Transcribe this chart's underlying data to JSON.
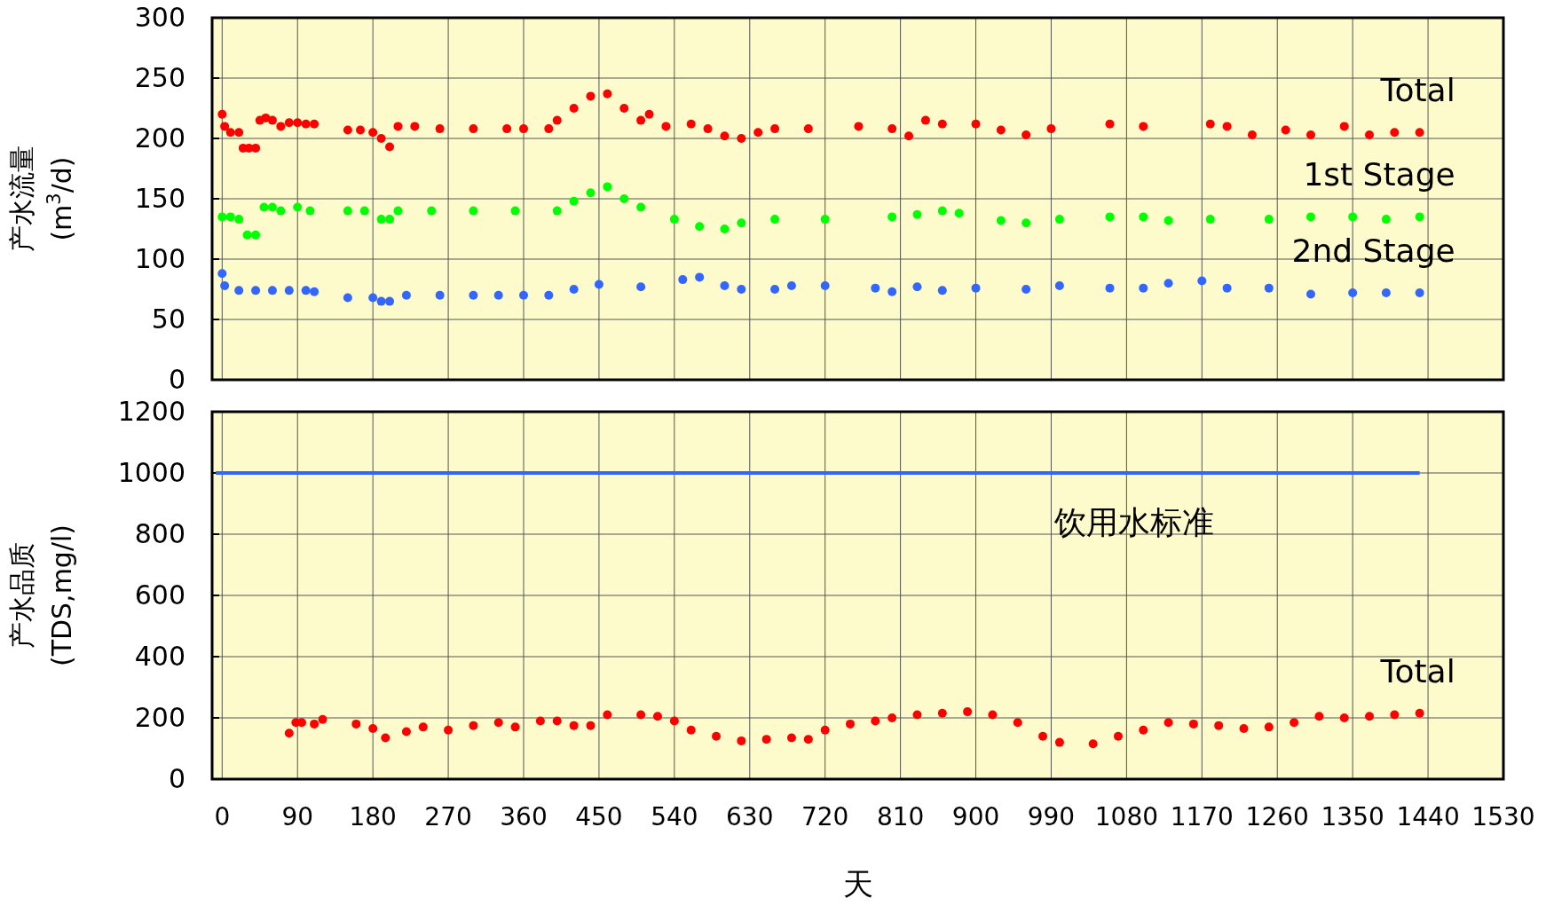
{
  "chart_data": [
    {
      "type": "scatter",
      "ylabel": "产水流量 (m$^{3}$/d)",
      "xlim": [
        -12,
        1530
      ],
      "xticks": [
        0,
        90,
        180,
        270,
        360,
        450,
        540,
        630,
        720,
        810,
        900,
        990,
        1080,
        1170,
        1260,
        1350,
        1440,
        1530
      ],
      "ylim": [
        0,
        300
      ],
      "yticks": [
        0,
        50,
        100,
        150,
        200,
        250,
        300
      ],
      "grid": true,
      "marker": "circle",
      "tick_labels": "y",
      "series": [
        {
          "name": "Total",
          "color": "#ff0000",
          "x": [
            0,
            3,
            10,
            20,
            25,
            32,
            40,
            45,
            52,
            60,
            70,
            80,
            90,
            100,
            110,
            150,
            165,
            180,
            190,
            200,
            210,
            230,
            260,
            300,
            340,
            360,
            390,
            400,
            420,
            440,
            460,
            480,
            500,
            510,
            530,
            560,
            580,
            600,
            620,
            640,
            660,
            700,
            760,
            800,
            820,
            840,
            860,
            900,
            930,
            960,
            990,
            1060,
            1100,
            1180,
            1200,
            1230,
            1270,
            1300,
            1340,
            1370,
            1400,
            1430
          ],
          "values": [
            220,
            210,
            205,
            205,
            192,
            192,
            192,
            215,
            217,
            215,
            210,
            213,
            213,
            212,
            212,
            207,
            207,
            205,
            200,
            193,
            210,
            210,
            208,
            208,
            208,
            208,
            208,
            215,
            225,
            235,
            237,
            225,
            215,
            220,
            210,
            212,
            208,
            202,
            200,
            205,
            208,
            208,
            210,
            208,
            202,
            215,
            212,
            212,
            207,
            203,
            208,
            212,
            210,
            212,
            210,
            203,
            207,
            203,
            210,
            203,
            205,
            205
          ]
        },
        {
          "name": "1st Stage",
          "color": "#00ff00",
          "x": [
            0,
            10,
            20,
            30,
            40,
            50,
            60,
            70,
            90,
            105,
            150,
            170,
            190,
            200,
            210,
            250,
            300,
            350,
            400,
            420,
            440,
            460,
            480,
            500,
            540,
            570,
            600,
            620,
            660,
            720,
            800,
            830,
            860,
            880,
            930,
            960,
            1000,
            1060,
            1100,
            1130,
            1180,
            1250,
            1300,
            1350,
            1390,
            1430
          ],
          "values": [
            135,
            135,
            133,
            120,
            120,
            143,
            143,
            140,
            143,
            140,
            140,
            140,
            133,
            133,
            140,
            140,
            140,
            140,
            140,
            148,
            155,
            160,
            150,
            143,
            133,
            127,
            125,
            130,
            133,
            133,
            135,
            137,
            140,
            138,
            132,
            130,
            133,
            135,
            135,
            132,
            133,
            133,
            135,
            135,
            133,
            135
          ]
        },
        {
          "name": "2nd Stage",
          "color": "#3366ff",
          "x": [
            0,
            3,
            20,
            40,
            60,
            80,
            100,
            110,
            150,
            180,
            190,
            200,
            220,
            260,
            300,
            330,
            360,
            390,
            420,
            450,
            500,
            550,
            570,
            600,
            620,
            660,
            680,
            720,
            780,
            800,
            830,
            860,
            900,
            960,
            1000,
            1060,
            1100,
            1130,
            1170,
            1200,
            1250,
            1300,
            1350,
            1390,
            1430
          ],
          "values": [
            88,
            78,
            74,
            74,
            74,
            74,
            74,
            73,
            68,
            68,
            65,
            65,
            70,
            70,
            70,
            70,
            70,
            70,
            75,
            79,
            77,
            83,
            85,
            78,
            75,
            75,
            78,
            78,
            76,
            73,
            77,
            74,
            76,
            75,
            78,
            76,
            76,
            80,
            82,
            76,
            76,
            71,
            72,
            72,
            72
          ]
        }
      ]
    },
    {
      "type": "scatter",
      "xlabel": "天",
      "ylabel": "产水品质 (TDS,mg/l)",
      "xlim": [
        -12,
        1530
      ],
      "xticks": [
        0,
        90,
        180,
        270,
        360,
        450,
        540,
        630,
        720,
        810,
        900,
        990,
        1080,
        1170,
        1260,
        1350,
        1440,
        1530
      ],
      "ylim": [
        0,
        1200
      ],
      "yticks": [
        0,
        200,
        400,
        600,
        800,
        1000,
        1200
      ],
      "grid": true,
      "marker": "circle",
      "ref_lines": [
        {
          "axis": "y",
          "value": 1000,
          "label": "饮用水标准",
          "color": "#3366ff"
        }
      ],
      "series": [
        {
          "name": "Total",
          "color": "#ff0000",
          "x": [
            80,
            88,
            95,
            110,
            120,
            160,
            180,
            195,
            220,
            240,
            270,
            300,
            330,
            350,
            380,
            400,
            420,
            440,
            460,
            500,
            520,
            540,
            560,
            590,
            620,
            650,
            680,
            700,
            720,
            750,
            780,
            800,
            830,
            860,
            890,
            920,
            950,
            980,
            1000,
            1040,
            1070,
            1100,
            1130,
            1160,
            1190,
            1220,
            1250,
            1280,
            1310,
            1340,
            1370,
            1400,
            1430
          ],
          "values": [
            150,
            185,
            185,
            180,
            195,
            180,
            165,
            135,
            155,
            170,
            160,
            175,
            185,
            170,
            190,
            190,
            175,
            175,
            210,
            210,
            205,
            190,
            160,
            140,
            125,
            130,
            135,
            130,
            160,
            180,
            190,
            200,
            210,
            215,
            220,
            210,
            185,
            140,
            120,
            115,
            140,
            160,
            185,
            180,
            175,
            165,
            170,
            185,
            205,
            200,
            205,
            210,
            215
          ]
        }
      ]
    }
  ]
}
